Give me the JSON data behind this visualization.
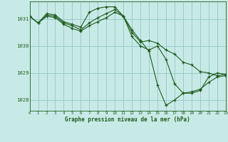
{
  "title": "Graphe pression niveau de la mer (hPa)",
  "background_color": "#c8eae6",
  "grid_color": "#99cccc",
  "line_color": "#1e5c1e",
  "xlim": [
    0,
    23
  ],
  "ylim": [
    1027.6,
    1031.65
  ],
  "yticks": [
    1028,
    1029,
    1030,
    1031
  ],
  "xticks": [
    0,
    1,
    2,
    3,
    4,
    5,
    6,
    7,
    8,
    9,
    10,
    11,
    12,
    13,
    14,
    15,
    16,
    17,
    18,
    19,
    20,
    21,
    22,
    23
  ],
  "series": [
    [
      1031.1,
      1030.85,
      1031.2,
      1031.15,
      1030.9,
      1030.8,
      1030.7,
      1031.25,
      1031.4,
      1031.45,
      1031.45,
      1031.1,
      1030.6,
      1030.2,
      1029.8,
      1028.55,
      1027.8,
      1028.0,
      1028.25,
      1028.25,
      1028.35,
      1028.85,
      1029.0,
      1028.95
    ],
    [
      1031.1,
      1030.85,
      1031.15,
      1031.1,
      1030.85,
      1030.75,
      1030.6,
      1030.85,
      1031.05,
      1031.2,
      1031.35,
      1031.1,
      1030.5,
      1030.15,
      1030.2,
      1030.1,
      1029.85,
      1029.7,
      1029.4,
      1029.3,
      1029.05,
      1029.0,
      1028.9,
      1028.95
    ],
    [
      1031.1,
      1030.85,
      1031.1,
      1031.05,
      1030.8,
      1030.65,
      1030.55,
      1030.75,
      1030.9,
      1031.05,
      1031.25,
      1031.1,
      1030.35,
      1030.0,
      1029.85,
      1030.0,
      1029.5,
      1028.6,
      1028.25,
      1028.3,
      1028.4,
      1028.65,
      1028.85,
      1028.9
    ]
  ]
}
